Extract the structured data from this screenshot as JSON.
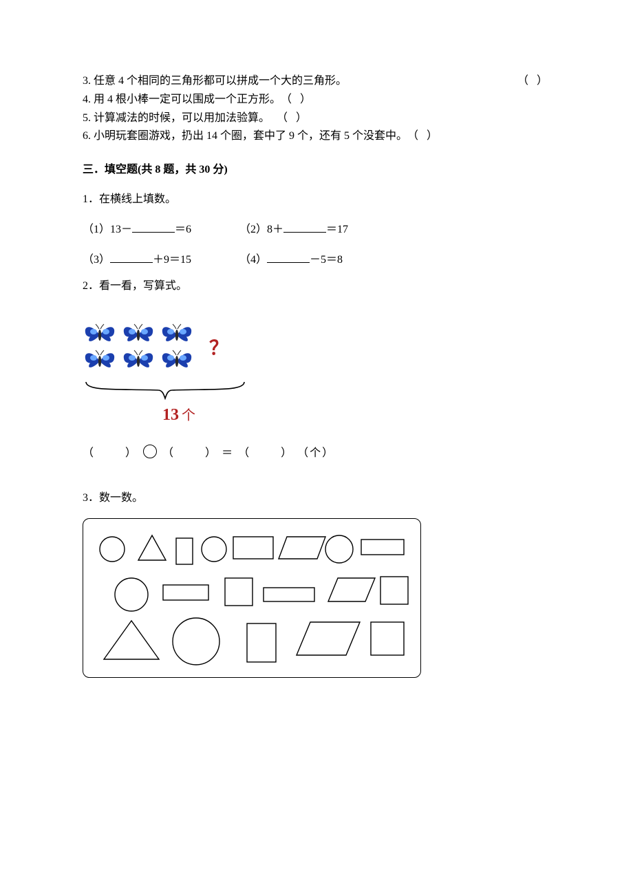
{
  "trueFalse": {
    "items": [
      {
        "num": "3.",
        "text": "任意 4 个相同的三角形都可以拼成一个大的三角形。"
      },
      {
        "num": "4.",
        "text": "用 4 根小棒一定可以围成一个正方形。"
      },
      {
        "num": "5.",
        "text": "计算减法的时候，可以用加法验算。"
      },
      {
        "num": "6.",
        "text": "小明玩套圈游戏，扔出 14 个圈，套中了 9 个，还有 5 个没套中。"
      }
    ],
    "paren": "（      ）"
  },
  "section3": {
    "title": "三．填空题(共 8 题，共 30 分)",
    "q1": {
      "stem": "1．在横线上填数。",
      "rows": [
        [
          {
            "label": "（1）13－",
            "after": "＝6"
          },
          {
            "label": "（2）8＋",
            "after": "＝17"
          }
        ],
        [
          {
            "label": "（3）",
            "after": "＋9＝15"
          },
          {
            "label": "（4）",
            "after": "－5＝8"
          }
        ]
      ]
    },
    "q2": {
      "stem": "2．看一看，写算式。",
      "butterflies": {
        "row1": 3,
        "row2": 3
      },
      "questionMark": "？",
      "braceLabel": "13",
      "braceUnit": "个",
      "equation": {
        "open": "（",
        "close": "）",
        "equals": "＝",
        "unit": "（个）"
      }
    },
    "q3": {
      "stem": "3．数一数。"
    }
  },
  "style": {
    "butterfly": {
      "wingOuter": "#1b3fae",
      "wingInner": "#6aa7ff",
      "body": "#2a2a2a"
    },
    "shapes": {
      "stroke": "#000000",
      "strokeWidth": 1.4
    }
  }
}
